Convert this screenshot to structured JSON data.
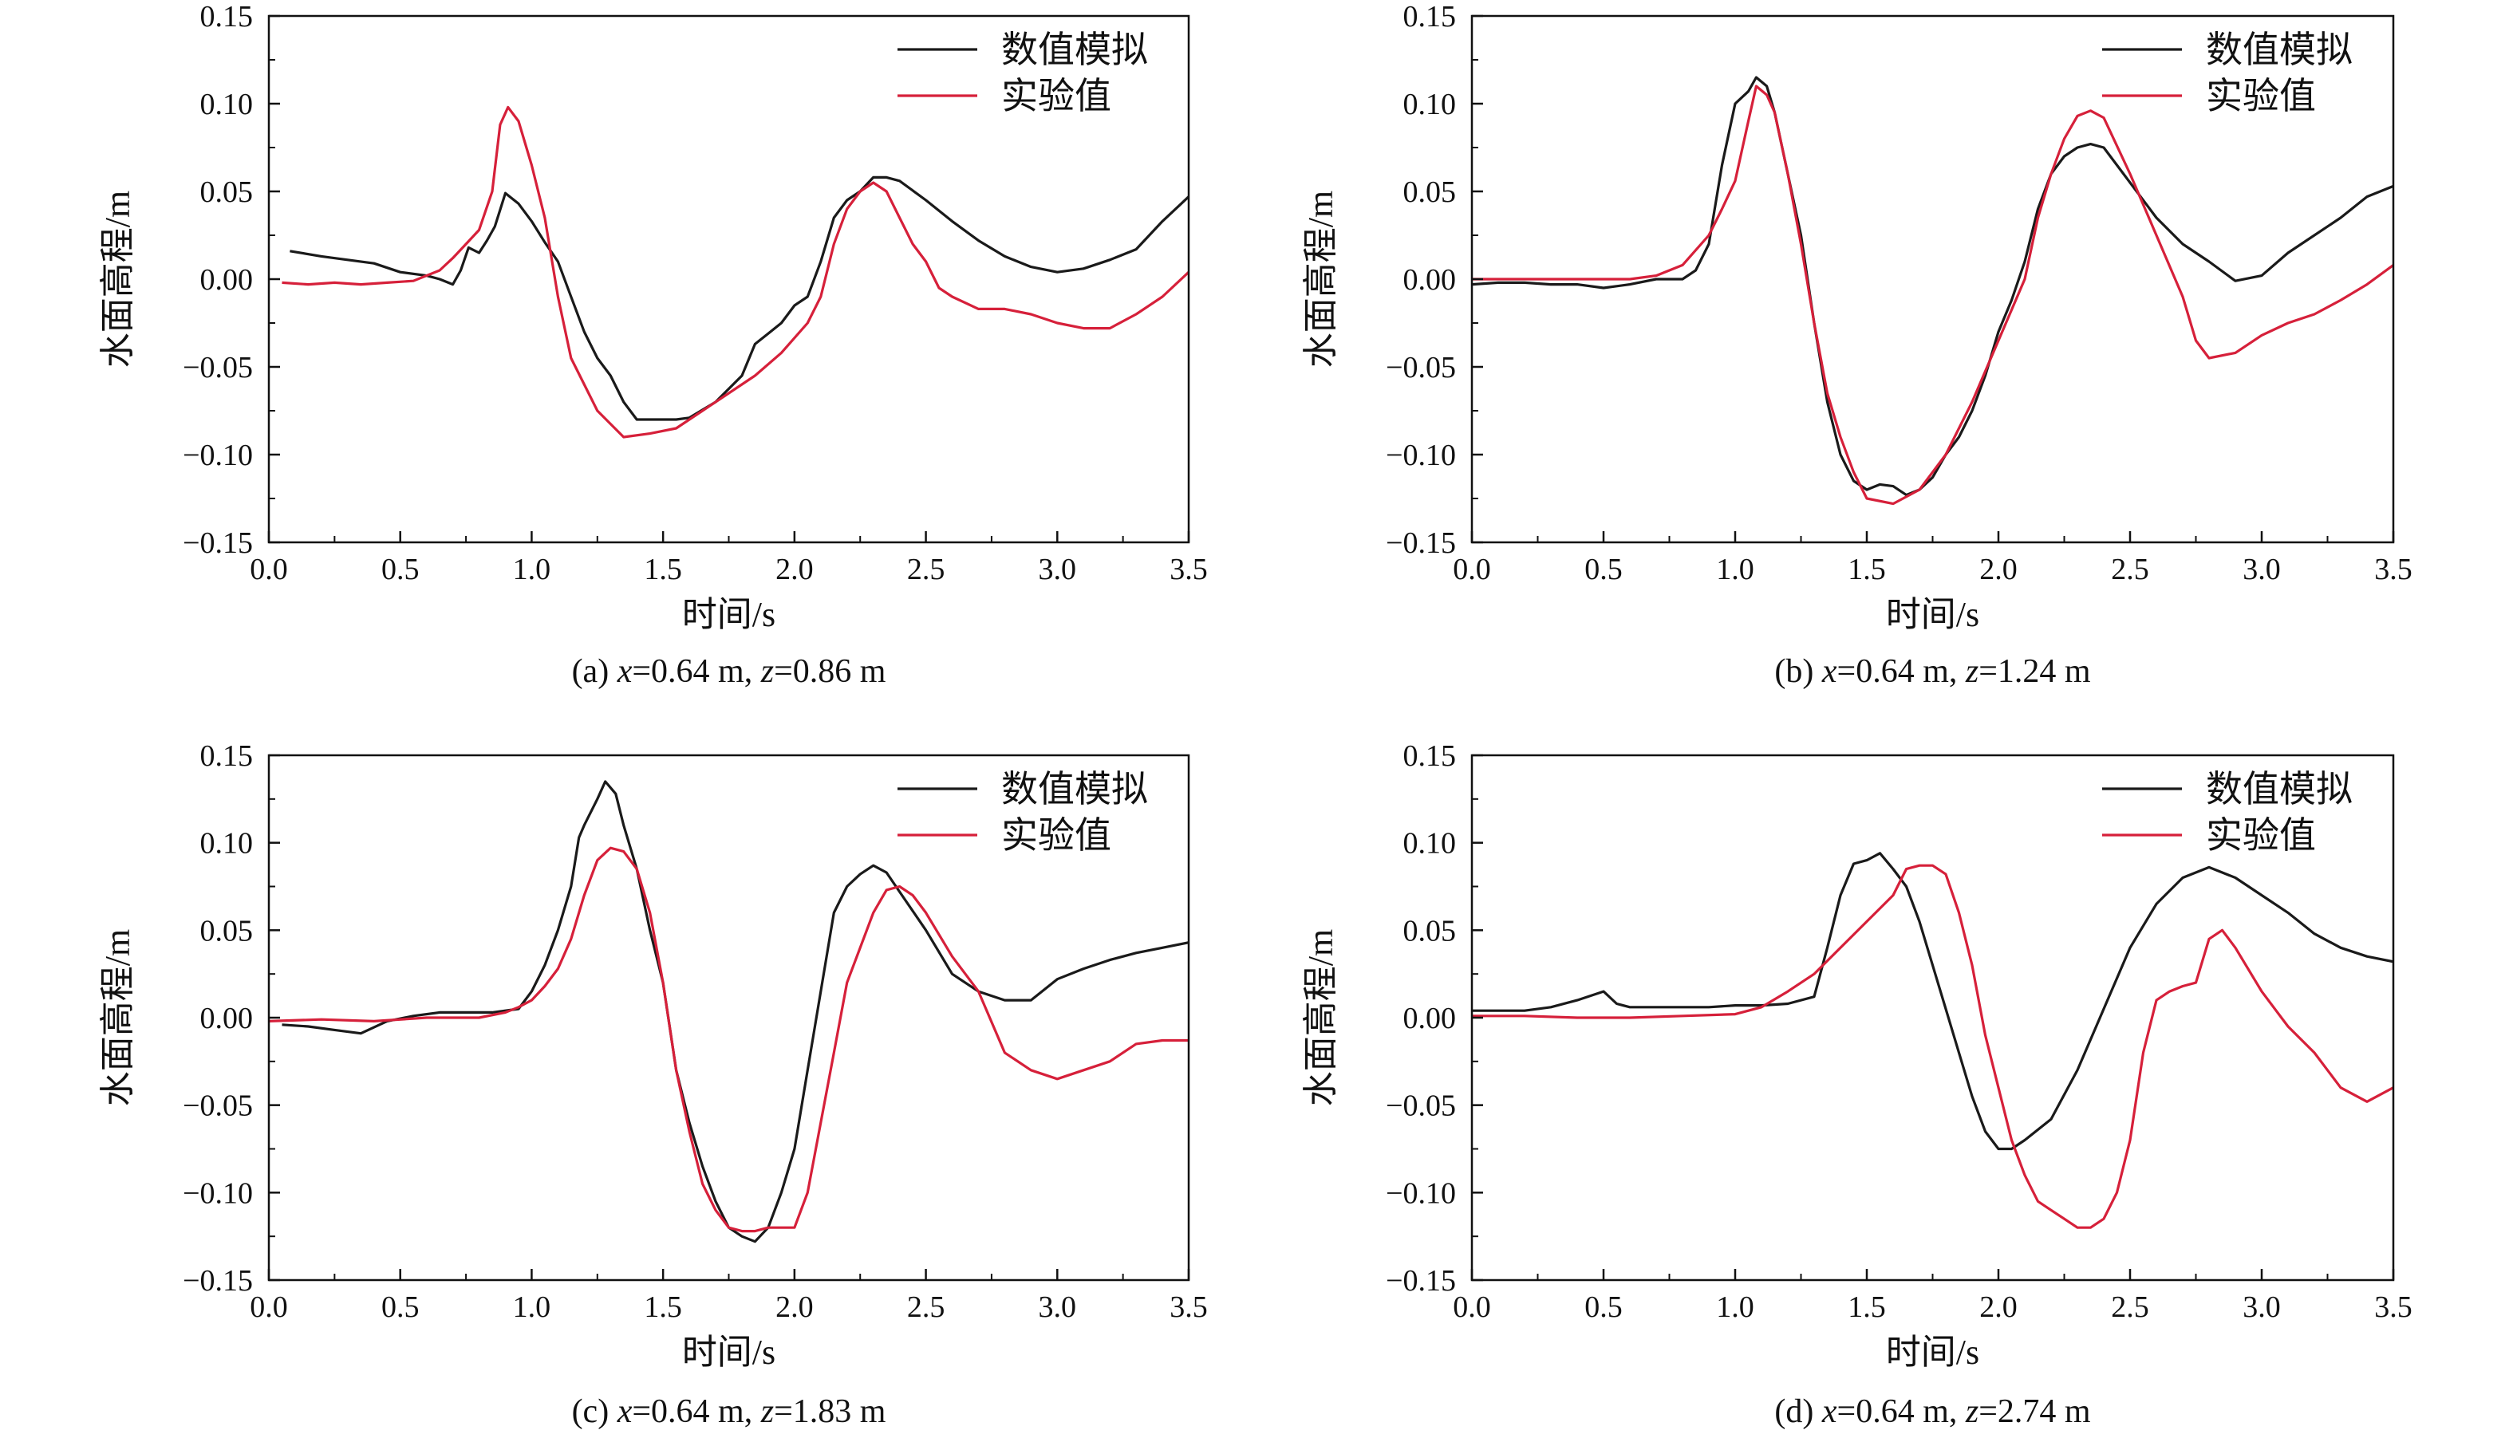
{
  "figure": {
    "xlabel": "时间/s",
    "ylabel": "水面高程/m",
    "legend": [
      "数值模拟",
      "实验值"
    ],
    "colors": {
      "sim": "#1a1a1a",
      "exp": "#d6203a",
      "axis": "#111111"
    }
  },
  "chart_data": [
    {
      "type": "line",
      "caption": "(a) x=0.64 m, z=0.86 m",
      "caption_parts": {
        "prefix": "(a) ",
        "v1": "x",
        "p1": "=0.64 m, ",
        "v2": "z",
        "p2": "=0.86 m"
      },
      "xlim": [
        0,
        3.5
      ],
      "ylim": [
        -0.15,
        0.15
      ],
      "xticks": [
        "0.0",
        "0.5",
        "1.0",
        "1.5",
        "2.0",
        "2.5",
        "3.0",
        "3.5"
      ],
      "yticks": [
        "−0.15",
        "−0.10",
        "−0.05",
        "0.00",
        "0.05",
        "0.10",
        "0.15"
      ],
      "legend_position": "top-right",
      "series": [
        {
          "name": "数值模拟",
          "color": "#1a1a1a",
          "x": [
            0.08,
            0.2,
            0.3,
            0.4,
            0.5,
            0.6,
            0.65,
            0.7,
            0.73,
            0.76,
            0.8,
            0.83,
            0.86,
            0.9,
            0.95,
            1.0,
            1.05,
            1.1,
            1.15,
            1.2,
            1.25,
            1.3,
            1.35,
            1.4,
            1.45,
            1.5,
            1.55,
            1.6,
            1.7,
            1.8,
            1.85,
            1.9,
            1.95,
            2.0,
            2.05,
            2.1,
            2.15,
            2.2,
            2.25,
            2.3,
            2.35,
            2.4,
            2.5,
            2.6,
            2.7,
            2.8,
            2.9,
            3.0,
            3.1,
            3.2,
            3.3,
            3.4,
            3.5
          ],
          "y": [
            0.016,
            0.013,
            0.011,
            0.009,
            0.004,
            0.002,
            0.0,
            -0.003,
            0.005,
            0.018,
            0.015,
            0.022,
            0.03,
            0.049,
            0.043,
            0.033,
            0.021,
            0.01,
            -0.01,
            -0.03,
            -0.045,
            -0.055,
            -0.07,
            -0.08,
            -0.08,
            -0.08,
            -0.08,
            -0.079,
            -0.07,
            -0.055,
            -0.037,
            -0.031,
            -0.025,
            -0.015,
            -0.01,
            0.01,
            0.035,
            0.045,
            0.05,
            0.058,
            0.058,
            0.056,
            0.045,
            0.033,
            0.022,
            0.013,
            0.007,
            0.004,
            0.006,
            0.011,
            0.017,
            0.033,
            0.047
          ]
        },
        {
          "name": "实验值",
          "color": "#d6203a",
          "x": [
            0.05,
            0.15,
            0.25,
            0.35,
            0.45,
            0.55,
            0.65,
            0.7,
            0.75,
            0.8,
            0.85,
            0.88,
            0.91,
            0.95,
            1.0,
            1.05,
            1.1,
            1.15,
            1.2,
            1.25,
            1.35,
            1.45,
            1.55,
            1.65,
            1.75,
            1.85,
            1.95,
            2.05,
            2.1,
            2.15,
            2.2,
            2.25,
            2.3,
            2.35,
            2.4,
            2.45,
            2.5,
            2.55,
            2.6,
            2.7,
            2.8,
            2.9,
            3.0,
            3.1,
            3.2,
            3.3,
            3.4,
            3.5
          ],
          "y": [
            -0.002,
            -0.003,
            -0.002,
            -0.003,
            -0.002,
            -0.001,
            0.005,
            0.012,
            0.02,
            0.028,
            0.05,
            0.088,
            0.098,
            0.09,
            0.065,
            0.035,
            -0.01,
            -0.045,
            -0.06,
            -0.075,
            -0.09,
            -0.088,
            -0.085,
            -0.075,
            -0.065,
            -0.055,
            -0.042,
            -0.025,
            -0.01,
            0.02,
            0.04,
            0.05,
            0.055,
            0.05,
            0.035,
            0.02,
            0.01,
            -0.005,
            -0.01,
            -0.017,
            -0.017,
            -0.02,
            -0.025,
            -0.028,
            -0.028,
            -0.02,
            -0.01,
            0.004
          ]
        }
      ]
    },
    {
      "type": "line",
      "caption": "(b) x=0.64 m, z=1.24 m",
      "caption_parts": {
        "prefix": "(b) ",
        "v1": "x",
        "p1": "=0.64 m, ",
        "v2": "z",
        "p2": "=1.24 m"
      },
      "xlim": [
        0,
        3.5
      ],
      "ylim": [
        -0.15,
        0.15
      ],
      "xticks": [
        "0.0",
        "0.5",
        "1.0",
        "1.5",
        "2.0",
        "2.5",
        "3.0",
        "3.5"
      ],
      "yticks": [
        "−0.15",
        "−0.10",
        "−0.05",
        "0.00",
        "0.05",
        "0.10",
        "0.15"
      ],
      "legend_position": "top-right",
      "series": [
        {
          "name": "数值模拟",
          "color": "#1a1a1a",
          "x": [
            0.0,
            0.1,
            0.2,
            0.3,
            0.4,
            0.5,
            0.6,
            0.7,
            0.8,
            0.85,
            0.9,
            0.95,
            1.0,
            1.05,
            1.08,
            1.12,
            1.15,
            1.2,
            1.25,
            1.3,
            1.35,
            1.4,
            1.45,
            1.5,
            1.55,
            1.6,
            1.65,
            1.7,
            1.75,
            1.8,
            1.85,
            1.9,
            1.95,
            2.0,
            2.05,
            2.1,
            2.15,
            2.2,
            2.25,
            2.3,
            2.35,
            2.4,
            2.5,
            2.6,
            2.7,
            2.8,
            2.9,
            3.0,
            3.1,
            3.2,
            3.3,
            3.4,
            3.5
          ],
          "y": [
            -0.003,
            -0.002,
            -0.002,
            -0.003,
            -0.003,
            -0.005,
            -0.003,
            0.0,
            0.0,
            0.005,
            0.02,
            0.065,
            0.1,
            0.107,
            0.115,
            0.11,
            0.095,
            0.06,
            0.025,
            -0.025,
            -0.07,
            -0.1,
            -0.115,
            -0.12,
            -0.117,
            -0.118,
            -0.123,
            -0.12,
            -0.113,
            -0.1,
            -0.09,
            -0.075,
            -0.055,
            -0.03,
            -0.012,
            0.01,
            0.04,
            0.06,
            0.07,
            0.075,
            0.077,
            0.075,
            0.055,
            0.035,
            0.02,
            0.01,
            -0.001,
            0.002,
            0.015,
            0.025,
            0.035,
            0.047,
            0.053
          ]
        },
        {
          "name": "实验值",
          "color": "#d6203a",
          "x": [
            0.0,
            0.2,
            0.4,
            0.6,
            0.7,
            0.8,
            0.9,
            0.95,
            1.0,
            1.05,
            1.08,
            1.12,
            1.15,
            1.2,
            1.25,
            1.3,
            1.35,
            1.4,
            1.45,
            1.5,
            1.6,
            1.7,
            1.8,
            1.9,
            2.0,
            2.1,
            2.15,
            2.2,
            2.25,
            2.3,
            2.35,
            2.4,
            2.5,
            2.6,
            2.7,
            2.75,
            2.8,
            2.9,
            3.0,
            3.1,
            3.2,
            3.3,
            3.4,
            3.5
          ],
          "y": [
            0.0,
            0.0,
            0.0,
            0.0,
            0.002,
            0.008,
            0.025,
            0.04,
            0.056,
            0.09,
            0.11,
            0.105,
            0.095,
            0.06,
            0.02,
            -0.025,
            -0.065,
            -0.09,
            -0.11,
            -0.125,
            -0.128,
            -0.12,
            -0.1,
            -0.07,
            -0.035,
            0.0,
            0.035,
            0.06,
            0.08,
            0.093,
            0.096,
            0.092,
            0.06,
            0.025,
            -0.01,
            -0.035,
            -0.045,
            -0.042,
            -0.032,
            -0.025,
            -0.02,
            -0.012,
            -0.003,
            0.008
          ]
        }
      ]
    },
    {
      "type": "line",
      "caption": "(c) x=0.64 m, z=1.83 m",
      "caption_parts": {
        "prefix": "(c) ",
        "v1": "x",
        "p1": "=0.64 m, ",
        "v2": "z",
        "p2": "=1.83 m"
      },
      "xlim": [
        0,
        3.5
      ],
      "ylim": [
        -0.15,
        0.15
      ],
      "xticks": [
        "0.0",
        "0.5",
        "1.0",
        "1.5",
        "2.0",
        "2.5",
        "3.0",
        "3.5"
      ],
      "yticks": [
        "−0.15",
        "−0.10",
        "−0.05",
        "0.00",
        "0.05",
        "0.10",
        "0.15"
      ],
      "legend_position": "top-right",
      "series": [
        {
          "name": "数值模拟",
          "color": "#1a1a1a",
          "x": [
            0.05,
            0.15,
            0.25,
            0.35,
            0.45,
            0.55,
            0.65,
            0.75,
            0.85,
            0.95,
            1.0,
            1.05,
            1.1,
            1.15,
            1.18,
            1.2,
            1.25,
            1.28,
            1.32,
            1.35,
            1.4,
            1.45,
            1.5,
            1.55,
            1.6,
            1.65,
            1.7,
            1.75,
            1.8,
            1.85,
            1.9,
            1.95,
            2.0,
            2.05,
            2.1,
            2.15,
            2.2,
            2.25,
            2.3,
            2.35,
            2.4,
            2.5,
            2.6,
            2.7,
            2.8,
            2.9,
            3.0,
            3.1,
            3.2,
            3.3,
            3.4,
            3.5
          ],
          "y": [
            -0.004,
            -0.005,
            -0.007,
            -0.009,
            -0.002,
            0.001,
            0.003,
            0.003,
            0.003,
            0.005,
            0.015,
            0.03,
            0.05,
            0.075,
            0.103,
            0.11,
            0.125,
            0.135,
            0.128,
            0.11,
            0.085,
            0.05,
            0.02,
            -0.03,
            -0.06,
            -0.085,
            -0.105,
            -0.12,
            -0.125,
            -0.128,
            -0.12,
            -0.1,
            -0.075,
            -0.03,
            0.015,
            0.06,
            0.075,
            0.082,
            0.087,
            0.083,
            0.072,
            0.05,
            0.025,
            0.015,
            0.01,
            0.01,
            0.022,
            0.028,
            0.033,
            0.037,
            0.04,
            0.043
          ]
        },
        {
          "name": "实验值",
          "color": "#d6203a",
          "x": [
            0.0,
            0.2,
            0.4,
            0.6,
            0.8,
            0.9,
            0.95,
            1.0,
            1.05,
            1.1,
            1.15,
            1.2,
            1.25,
            1.3,
            1.35,
            1.4,
            1.45,
            1.5,
            1.55,
            1.6,
            1.65,
            1.7,
            1.75,
            1.8,
            1.85,
            1.9,
            1.95,
            2.0,
            2.05,
            2.1,
            2.15,
            2.2,
            2.25,
            2.3,
            2.35,
            2.4,
            2.45,
            2.5,
            2.6,
            2.7,
            2.8,
            2.9,
            3.0,
            3.1,
            3.2,
            3.3,
            3.4,
            3.5
          ],
          "y": [
            -0.002,
            -0.001,
            -0.002,
            0.0,
            0.0,
            0.003,
            0.006,
            0.01,
            0.018,
            0.028,
            0.045,
            0.07,
            0.09,
            0.097,
            0.095,
            0.085,
            0.06,
            0.02,
            -0.03,
            -0.065,
            -0.095,
            -0.11,
            -0.12,
            -0.122,
            -0.122,
            -0.12,
            -0.12,
            -0.12,
            -0.1,
            -0.06,
            -0.02,
            0.02,
            0.04,
            0.06,
            0.073,
            0.075,
            0.07,
            0.06,
            0.035,
            0.015,
            -0.02,
            -0.03,
            -0.035,
            -0.03,
            -0.025,
            -0.015,
            -0.013,
            -0.013
          ]
        }
      ]
    },
    {
      "type": "line",
      "caption": "(d) x=0.64 m, z=2.74 m",
      "caption_parts": {
        "prefix": "(d) ",
        "v1": "x",
        "p1": "=0.64 m, ",
        "v2": "z",
        "p2": "=2.74 m"
      },
      "xlim": [
        0,
        3.5
      ],
      "ylim": [
        -0.15,
        0.15
      ],
      "xticks": [
        "0.0",
        "0.5",
        "1.0",
        "1.5",
        "2.0",
        "2.5",
        "3.0",
        "3.5"
      ],
      "yticks": [
        "−0.15",
        "−0.10",
        "−0.05",
        "0.00",
        "0.05",
        "0.10",
        "0.15"
      ],
      "legend_position": "top-right",
      "series": [
        {
          "name": "数值模拟",
          "color": "#1a1a1a",
          "x": [
            0.0,
            0.1,
            0.2,
            0.3,
            0.4,
            0.5,
            0.55,
            0.6,
            0.7,
            0.8,
            0.9,
            1.0,
            1.1,
            1.2,
            1.3,
            1.35,
            1.4,
            1.45,
            1.5,
            1.55,
            1.6,
            1.65,
            1.7,
            1.75,
            1.8,
            1.85,
            1.9,
            1.95,
            2.0,
            2.05,
            2.1,
            2.2,
            2.3,
            2.4,
            2.5,
            2.6,
            2.7,
            2.8,
            2.9,
            3.0,
            3.1,
            3.2,
            3.3,
            3.4,
            3.5
          ],
          "y": [
            0.004,
            0.004,
            0.004,
            0.006,
            0.01,
            0.015,
            0.008,
            0.006,
            0.006,
            0.006,
            0.006,
            0.007,
            0.007,
            0.008,
            0.012,
            0.04,
            0.07,
            0.088,
            0.09,
            0.094,
            0.085,
            0.075,
            0.055,
            0.03,
            0.005,
            -0.02,
            -0.045,
            -0.065,
            -0.075,
            -0.075,
            -0.07,
            -0.058,
            -0.03,
            0.005,
            0.04,
            0.065,
            0.08,
            0.086,
            0.08,
            0.07,
            0.06,
            0.048,
            0.04,
            0.035,
            0.032
          ]
        },
        {
          "name": "实验值",
          "color": "#d6203a",
          "x": [
            0.0,
            0.2,
            0.4,
            0.6,
            0.8,
            1.0,
            1.1,
            1.2,
            1.3,
            1.4,
            1.5,
            1.6,
            1.65,
            1.7,
            1.75,
            1.8,
            1.85,
            1.9,
            1.95,
            2.0,
            2.05,
            2.1,
            2.15,
            2.2,
            2.25,
            2.3,
            2.35,
            2.4,
            2.45,
            2.5,
            2.55,
            2.6,
            2.65,
            2.7,
            2.75,
            2.8,
            2.85,
            2.9,
            3.0,
            3.1,
            3.2,
            3.3,
            3.4,
            3.5
          ],
          "y": [
            0.001,
            0.001,
            0.0,
            0.0,
            0.001,
            0.002,
            0.006,
            0.015,
            0.025,
            0.04,
            0.055,
            0.07,
            0.085,
            0.087,
            0.087,
            0.082,
            0.06,
            0.03,
            -0.01,
            -0.04,
            -0.07,
            -0.09,
            -0.105,
            -0.11,
            -0.115,
            -0.12,
            -0.12,
            -0.115,
            -0.1,
            -0.07,
            -0.02,
            0.01,
            0.015,
            0.018,
            0.02,
            0.045,
            0.05,
            0.04,
            0.015,
            -0.005,
            -0.02,
            -0.04,
            -0.048,
            -0.04
          ]
        }
      ]
    }
  ]
}
